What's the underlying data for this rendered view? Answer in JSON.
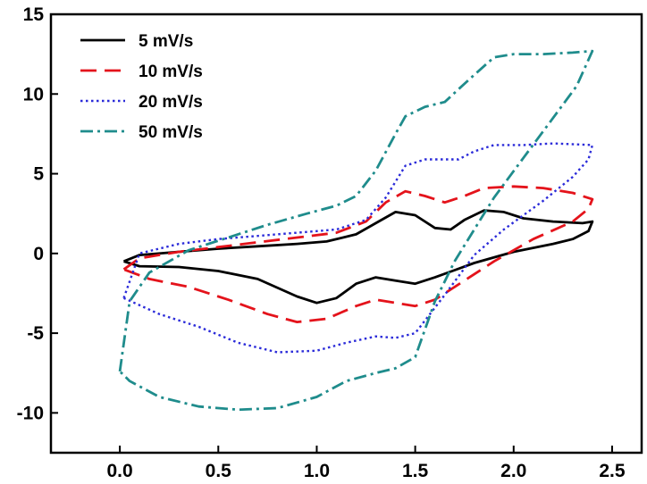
{
  "chart_data": {
    "type": "line",
    "title": "",
    "xlabel": "",
    "ylabel": "",
    "xlim": [
      -0.35,
      2.65
    ],
    "ylim": [
      -12.5,
      15
    ],
    "xticks": [
      0.0,
      0.5,
      1.0,
      1.5,
      2.0,
      2.5
    ],
    "xtick_labels": [
      "0.0",
      "0.5",
      "1.0",
      "1.5",
      "2.0",
      "2.5"
    ],
    "yticks": [
      -10,
      -5,
      0,
      5,
      10,
      15
    ],
    "ytick_labels": [
      "-10",
      "-5",
      "0",
      "5",
      "10",
      "15"
    ],
    "grid": false,
    "legend_position": "top-left",
    "series": [
      {
        "name": "5 mV/s",
        "color": "#000000",
        "dash": "solid",
        "points": [
          [
            0.02,
            -0.5
          ],
          [
            0.1,
            -0.1
          ],
          [
            0.3,
            0.1
          ],
          [
            0.5,
            0.3
          ],
          [
            0.7,
            0.45
          ],
          [
            0.9,
            0.6
          ],
          [
            1.05,
            0.75
          ],
          [
            1.2,
            1.2
          ],
          [
            1.3,
            1.9
          ],
          [
            1.4,
            2.6
          ],
          [
            1.5,
            2.4
          ],
          [
            1.6,
            1.6
          ],
          [
            1.68,
            1.5
          ],
          [
            1.75,
            2.1
          ],
          [
            1.85,
            2.7
          ],
          [
            1.95,
            2.6
          ],
          [
            2.05,
            2.2
          ],
          [
            2.2,
            2.0
          ],
          [
            2.35,
            1.9
          ],
          [
            2.4,
            2.0
          ],
          [
            2.38,
            1.4
          ],
          [
            2.3,
            0.9
          ],
          [
            2.2,
            0.6
          ],
          [
            2.0,
            0.1
          ],
          [
            1.8,
            -0.6
          ],
          [
            1.6,
            -1.5
          ],
          [
            1.5,
            -1.9
          ],
          [
            1.4,
            -1.7
          ],
          [
            1.3,
            -1.5
          ],
          [
            1.2,
            -1.9
          ],
          [
            1.1,
            -2.8
          ],
          [
            1.0,
            -3.1
          ],
          [
            0.9,
            -2.7
          ],
          [
            0.7,
            -1.6
          ],
          [
            0.5,
            -1.1
          ],
          [
            0.3,
            -0.85
          ],
          [
            0.1,
            -0.8
          ],
          [
            0.02,
            -0.5
          ]
        ]
      },
      {
        "name": "10 mV/s",
        "color": "#e4131b",
        "dash": "long-dash",
        "points": [
          [
            0.02,
            -1.0
          ],
          [
            0.1,
            -0.3
          ],
          [
            0.3,
            0.1
          ],
          [
            0.5,
            0.4
          ],
          [
            0.7,
            0.7
          ],
          [
            0.9,
            1.0
          ],
          [
            1.1,
            1.3
          ],
          [
            1.25,
            2.0
          ],
          [
            1.35,
            3.2
          ],
          [
            1.45,
            3.9
          ],
          [
            1.55,
            3.6
          ],
          [
            1.65,
            3.2
          ],
          [
            1.75,
            3.6
          ],
          [
            1.85,
            4.1
          ],
          [
            2.0,
            4.2
          ],
          [
            2.15,
            4.1
          ],
          [
            2.3,
            3.8
          ],
          [
            2.4,
            3.4
          ],
          [
            2.38,
            2.8
          ],
          [
            2.3,
            2.0
          ],
          [
            2.1,
            0.9
          ],
          [
            1.9,
            -0.5
          ],
          [
            1.75,
            -1.7
          ],
          [
            1.6,
            -2.9
          ],
          [
            1.5,
            -3.3
          ],
          [
            1.4,
            -3.1
          ],
          [
            1.3,
            -2.9
          ],
          [
            1.2,
            -3.3
          ],
          [
            1.05,
            -4.1
          ],
          [
            0.9,
            -4.3
          ],
          [
            0.75,
            -3.8
          ],
          [
            0.55,
            -2.9
          ],
          [
            0.35,
            -2.1
          ],
          [
            0.15,
            -1.6
          ],
          [
            0.02,
            -1.0
          ]
        ]
      },
      {
        "name": "20 mV/s",
        "color": "#2b2bd9",
        "dash": "dotted",
        "points": [
          [
            0.02,
            -2.8
          ],
          [
            0.1,
            0.0
          ],
          [
            0.3,
            0.6
          ],
          [
            0.5,
            0.9
          ],
          [
            0.7,
            1.1
          ],
          [
            0.9,
            1.3
          ],
          [
            1.1,
            1.5
          ],
          [
            1.25,
            2.1
          ],
          [
            1.35,
            3.5
          ],
          [
            1.45,
            5.5
          ],
          [
            1.55,
            5.9
          ],
          [
            1.65,
            5.9
          ],
          [
            1.72,
            5.9
          ],
          [
            1.8,
            6.4
          ],
          [
            1.9,
            6.8
          ],
          [
            2.05,
            6.8
          ],
          [
            2.2,
            6.9
          ],
          [
            2.4,
            6.8
          ],
          [
            2.38,
            5.9
          ],
          [
            2.3,
            4.8
          ],
          [
            2.15,
            3.3
          ],
          [
            1.95,
            1.5
          ],
          [
            1.8,
            -0.1
          ],
          [
            1.65,
            -2.6
          ],
          [
            1.5,
            -5.0
          ],
          [
            1.4,
            -5.3
          ],
          [
            1.3,
            -5.2
          ],
          [
            1.15,
            -5.6
          ],
          [
            1.0,
            -6.1
          ],
          [
            0.8,
            -6.2
          ],
          [
            0.6,
            -5.6
          ],
          [
            0.4,
            -4.6
          ],
          [
            0.2,
            -3.8
          ],
          [
            0.02,
            -2.8
          ]
        ]
      },
      {
        "name": "50 mV/s",
        "color": "#1f8c8c",
        "dash": "dash-dot",
        "points": [
          [
            0.0,
            -7.4
          ],
          [
            0.05,
            -3.0
          ],
          [
            0.15,
            -1.2
          ],
          [
            0.35,
            0.2
          ],
          [
            0.55,
            1.0
          ],
          [
            0.75,
            1.8
          ],
          [
            0.95,
            2.5
          ],
          [
            1.1,
            3.0
          ],
          [
            1.2,
            3.6
          ],
          [
            1.3,
            5.2
          ],
          [
            1.4,
            7.5
          ],
          [
            1.45,
            8.6
          ],
          [
            1.55,
            9.2
          ],
          [
            1.65,
            9.5
          ],
          [
            1.72,
            10.3
          ],
          [
            1.8,
            11.2
          ],
          [
            1.9,
            12.3
          ],
          [
            2.0,
            12.5
          ],
          [
            2.15,
            12.5
          ],
          [
            2.3,
            12.6
          ],
          [
            2.4,
            12.7
          ],
          [
            2.32,
            10.5
          ],
          [
            2.2,
            8.5
          ],
          [
            2.05,
            6.0
          ],
          [
            1.9,
            3.5
          ],
          [
            1.8,
            1.5
          ],
          [
            1.7,
            -0.5
          ],
          [
            1.6,
            -3.0
          ],
          [
            1.5,
            -6.5
          ],
          [
            1.4,
            -7.2
          ],
          [
            1.3,
            -7.5
          ],
          [
            1.15,
            -8.0
          ],
          [
            1.0,
            -9.0
          ],
          [
            0.8,
            -9.7
          ],
          [
            0.6,
            -9.8
          ],
          [
            0.4,
            -9.6
          ],
          [
            0.2,
            -9.0
          ],
          [
            0.05,
            -8.0
          ],
          [
            0.0,
            -7.4
          ]
        ]
      }
    ]
  }
}
